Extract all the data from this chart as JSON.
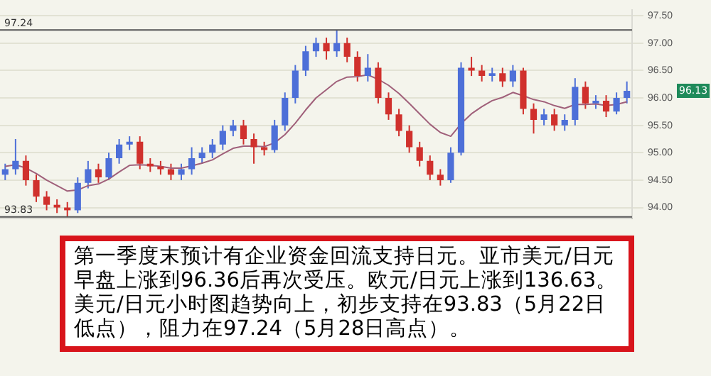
{
  "chart_data": {
    "type": "candlestick",
    "categories": [
      null,
      null,
      null,
      null,
      null,
      null,
      null,
      null,
      null,
      null,
      null,
      null,
      null,
      null,
      null,
      null,
      null,
      null,
      null,
      null,
      null,
      null,
      null,
      null,
      null,
      null,
      null,
      null,
      null,
      null,
      null,
      null,
      null,
      null,
      null,
      null,
      null,
      null,
      null,
      null,
      null,
      null,
      null,
      null,
      null,
      null,
      null,
      null,
      null,
      null,
      null,
      null,
      null,
      null,
      null,
      null,
      null,
      null,
      null,
      null,
      null
    ],
    "ohlc": [
      [
        94.6,
        94.8,
        94.5,
        94.7
      ],
      [
        94.7,
        95.25,
        94.6,
        94.85
      ],
      [
        94.85,
        94.95,
        94.4,
        94.5
      ],
      [
        94.5,
        94.6,
        94.1,
        94.2
      ],
      [
        94.2,
        94.3,
        93.95,
        94.05
      ],
      [
        94.05,
        94.15,
        93.9,
        94.0
      ],
      [
        94.0,
        94.1,
        93.83,
        93.95
      ],
      [
        93.95,
        94.55,
        93.9,
        94.45
      ],
      [
        94.45,
        94.85,
        94.35,
        94.7
      ],
      [
        94.7,
        94.8,
        94.45,
        94.55
      ],
      [
        94.55,
        95.0,
        94.5,
        94.9
      ],
      [
        94.9,
        95.25,
        94.8,
        95.15
      ],
      [
        95.15,
        95.3,
        95.05,
        95.2
      ],
      [
        95.2,
        95.3,
        94.7,
        94.8
      ],
      [
        94.8,
        94.9,
        94.65,
        94.75
      ],
      [
        94.75,
        94.85,
        94.6,
        94.7
      ],
      [
        94.7,
        94.8,
        94.5,
        94.6
      ],
      [
        94.6,
        94.8,
        94.5,
        94.7
      ],
      [
        94.7,
        95.1,
        94.6,
        94.9
      ],
      [
        94.9,
        95.1,
        94.8,
        95.0
      ],
      [
        95.0,
        95.25,
        94.9,
        95.15
      ],
      [
        95.15,
        95.5,
        95.05,
        95.4
      ],
      [
        95.4,
        95.6,
        95.3,
        95.5
      ],
      [
        95.5,
        95.6,
        95.15,
        95.25
      ],
      [
        95.25,
        95.35,
        94.8,
        95.1
      ],
      [
        95.1,
        95.2,
        94.95,
        95.05
      ],
      [
        95.05,
        95.6,
        95.0,
        95.5
      ],
      [
        95.5,
        96.1,
        95.4,
        96.0
      ],
      [
        96.0,
        96.6,
        95.9,
        96.5
      ],
      [
        96.5,
        96.95,
        96.4,
        96.85
      ],
      [
        96.85,
        97.1,
        96.75,
        97.0
      ],
      [
        97.0,
        97.1,
        96.7,
        96.85
      ],
      [
        96.85,
        97.24,
        96.75,
        97.0
      ],
      [
        97.0,
        97.1,
        96.65,
        96.75
      ],
      [
        96.75,
        96.85,
        96.3,
        96.4
      ],
      [
        96.4,
        96.8,
        96.3,
        96.55
      ],
      [
        96.55,
        96.65,
        95.9,
        96.0
      ],
      [
        96.0,
        96.1,
        95.6,
        95.7
      ],
      [
        95.7,
        95.8,
        95.3,
        95.4
      ],
      [
        95.4,
        95.5,
        95.0,
        95.1
      ],
      [
        95.1,
        95.2,
        94.75,
        94.85
      ],
      [
        94.85,
        94.95,
        94.5,
        94.6
      ],
      [
        94.6,
        94.7,
        94.4,
        94.5
      ],
      [
        94.5,
        95.1,
        94.45,
        95.0
      ],
      [
        95.0,
        96.65,
        94.95,
        96.55
      ],
      [
        96.55,
        96.75,
        96.4,
        96.5
      ],
      [
        96.5,
        96.6,
        96.3,
        96.4
      ],
      [
        96.4,
        96.55,
        96.3,
        96.45
      ],
      [
        96.45,
        96.55,
        96.2,
        96.3
      ],
      [
        96.3,
        96.6,
        96.2,
        96.5
      ],
      [
        96.5,
        96.55,
        95.7,
        95.8
      ],
      [
        95.8,
        95.9,
        95.35,
        95.6
      ],
      [
        95.6,
        95.8,
        95.5,
        95.7
      ],
      [
        95.7,
        95.8,
        95.4,
        95.5
      ],
      [
        95.5,
        95.7,
        95.4,
        95.6
      ],
      [
        95.6,
        96.36,
        95.5,
        96.2
      ],
      [
        96.2,
        96.3,
        95.8,
        95.9
      ],
      [
        95.9,
        96.05,
        95.8,
        95.95
      ],
      [
        95.95,
        96.05,
        95.65,
        95.75
      ],
      [
        95.75,
        96.1,
        95.7,
        96.0
      ],
      [
        96.0,
        96.3,
        95.9,
        96.13
      ]
    ],
    "colors": [
      "#4d6fd8",
      "#4d6fd8",
      "#d0312d",
      "#d0312d",
      "#d0312d",
      "#d0312d",
      "#d0312d",
      "#4d6fd8",
      "#4d6fd8",
      "#d0312d",
      "#4d6fd8",
      "#4d6fd8",
      "#4d6fd8",
      "#d0312d",
      "#d0312d",
      "#d0312d",
      "#d0312d",
      "#4d6fd8",
      "#4d6fd8",
      "#4d6fd8",
      "#4d6fd8",
      "#4d6fd8",
      "#4d6fd8",
      "#d0312d",
      "#d0312d",
      "#d0312d",
      "#4d6fd8",
      "#4d6fd8",
      "#4d6fd8",
      "#4d6fd8",
      "#4d6fd8",
      "#d0312d",
      "#4d6fd8",
      "#d0312d",
      "#d0312d",
      "#4d6fd8",
      "#d0312d",
      "#d0312d",
      "#d0312d",
      "#d0312d",
      "#d0312d",
      "#d0312d",
      "#d0312d",
      "#4d6fd8",
      "#4d6fd8",
      "#d0312d",
      "#d0312d",
      "#4d6fd8",
      "#d0312d",
      "#4d6fd8",
      "#d0312d",
      "#d0312d",
      "#4d6fd8",
      "#d0312d",
      "#4d6fd8",
      "#4d6fd8",
      "#d0312d",
      "#4d6fd8",
      "#d0312d",
      "#4d6fd8",
      "#4d6fd8"
    ],
    "series": [
      {
        "type": "line",
        "color": "#a0607a",
        "values": [
          94.75,
          94.78,
          94.72,
          94.62,
          94.5,
          94.4,
          94.3,
          94.32,
          94.4,
          94.43,
          94.52,
          94.65,
          94.77,
          94.78,
          94.77,
          94.75,
          94.72,
          94.72,
          94.76,
          94.81,
          94.87,
          94.98,
          95.08,
          95.12,
          95.12,
          95.11,
          95.18,
          95.33,
          95.54,
          95.78,
          96.0,
          96.15,
          96.3,
          96.38,
          96.39,
          96.42,
          96.34,
          96.23,
          96.08,
          95.9,
          95.71,
          95.52,
          95.37,
          95.3,
          95.53,
          95.71,
          95.84,
          95.95,
          96.01,
          96.1,
          96.04,
          95.97,
          95.93,
          95.86,
          95.81,
          95.88,
          95.88,
          95.89,
          95.86,
          95.88,
          95.93
        ]
      }
    ],
    "ylim": [
      93.8,
      97.6
    ],
    "yticks": [
      {
        "value": 94,
        "label": "94.00"
      },
      {
        "value": 94.5,
        "label": "94.50"
      },
      {
        "value": 95,
        "label": "95.00"
      },
      {
        "value": 95.5,
        "label": "95.50"
      },
      {
        "value": 96,
        "label": "96.00"
      },
      {
        "value": 96.5,
        "label": "96.50"
      },
      {
        "value": 97,
        "label": "97.00"
      },
      {
        "value": 97.5,
        "label": "97.50"
      }
    ],
    "ref_lines": [
      {
        "axis": "y",
        "value": 97.24,
        "label": "97.24",
        "color": "#555555"
      },
      {
        "axis": "y",
        "value": 93.83,
        "label": "93.83",
        "color": "#555555"
      }
    ],
    "annotations": [
      "第一季度末预计有企业资金回流支持日元。亚市美元/日元早盘上涨到96.36后再次受压。欧元/日元上涨到136.63。美元/日元小时图趋势向上，初步支持在93.83（5月22日低点），阻力在97.24（5月28日高点）。",
      "96.13"
    ],
    "grid": "y",
    "legend": false,
    "tick_labels": "y"
  }
}
